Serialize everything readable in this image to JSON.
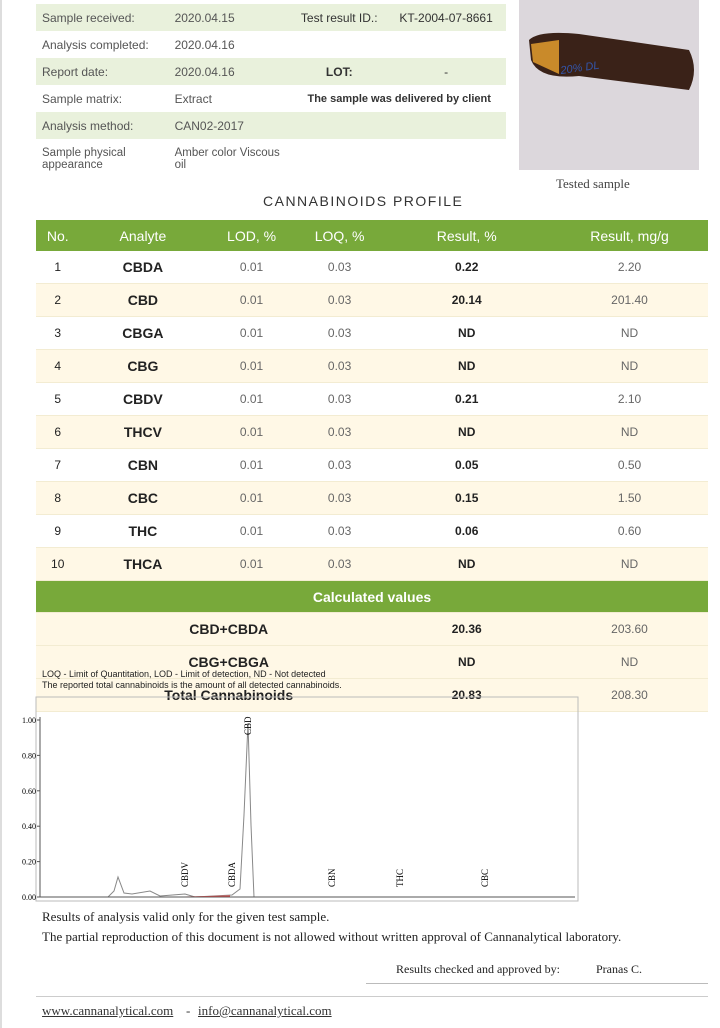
{
  "info": {
    "rows": [
      [
        "Sample received:",
        "2020.04.15",
        "Test result ID.:",
        "KT-2004-07-8661"
      ],
      [
        "Analysis completed:",
        "2020.04.16"
      ],
      [
        "Report date:",
        "2020.04.16",
        "LOT:",
        "-"
      ],
      [
        "Sample matrix:",
        "Extract",
        "The sample was delivered by client"
      ],
      [
        "Analysis method:",
        "CAN02-2017"
      ],
      [
        "Sample physical appearance",
        "Amber color Viscous oil"
      ]
    ]
  },
  "photo": {
    "label": "20% DL",
    "caption": "Tested sample"
  },
  "profile": {
    "title": "CANNABINOIDS PROFILE",
    "header": [
      "No.",
      "Analyte",
      "LOD, %",
      "LOQ, %",
      "Result, %",
      "Result, mg/g"
    ],
    "rows": [
      [
        "1",
        "CBDA",
        "0.01",
        "0.03",
        "0.22",
        "2.20"
      ],
      [
        "2",
        "CBD",
        "0.01",
        "0.03",
        "20.14",
        "201.40"
      ],
      [
        "3",
        "CBGA",
        "0.01",
        "0.03",
        "ND",
        "ND"
      ],
      [
        "4",
        "CBG",
        "0.01",
        "0.03",
        "ND",
        "ND"
      ],
      [
        "5",
        "CBDV",
        "0.01",
        "0.03",
        "0.21",
        "2.10"
      ],
      [
        "6",
        "THCV",
        "0.01",
        "0.03",
        "ND",
        "ND"
      ],
      [
        "7",
        "CBN",
        "0.01",
        "0.03",
        "0.05",
        "0.50"
      ],
      [
        "8",
        "CBC",
        "0.01",
        "0.03",
        "0.15",
        "1.50"
      ],
      [
        "9",
        "THC",
        "0.01",
        "0.03",
        "0.06",
        "0.60"
      ],
      [
        "10",
        "THCA",
        "0.01",
        "0.03",
        "ND",
        "ND"
      ]
    ],
    "calculated_title": "Calculated values",
    "calculated_rows": [
      [
        "CBD+CBDA",
        "20.36",
        "203.60"
      ],
      [
        "CBG+CBGA",
        "ND",
        "ND"
      ],
      [
        "Total Cannabinoids",
        "20.83",
        "208.30"
      ]
    ]
  },
  "notes": [
    "LOQ - Limit of Quantitation, LOD - Limit of detection, ND - Not detected",
    "The reported total cannabinoids is the amount of all detected cannabinoids."
  ],
  "chromatogram": {
    "ylim": [
      0,
      1
    ],
    "yticks": [
      {
        "value": 0,
        "label": "0.00"
      },
      {
        "value": 0.2,
        "label": "0.20"
      },
      {
        "value": 0.4,
        "label": "0.40"
      },
      {
        "value": 0.6,
        "label": "0.60"
      },
      {
        "value": 0.8,
        "label": "0.80"
      },
      {
        "value": 1,
        "label": "1.00"
      }
    ],
    "peak_labels": [
      "CBD",
      "CBDV",
      "CBDA",
      "CBN",
      "THC",
      "CBC"
    ]
  },
  "footer": {
    "disclaimer": [
      "Results of analysis valid only for the given test sample.",
      "The partial reproduction of this document is not allowed without written approval of Cannanalytical laboratory."
    ],
    "approved_label": "Results checked and approved by:",
    "approved_name": "Pranas C.",
    "website": "www.cannanalytical.com",
    "separator": "-",
    "email": "info@cannanalytical.com"
  }
}
